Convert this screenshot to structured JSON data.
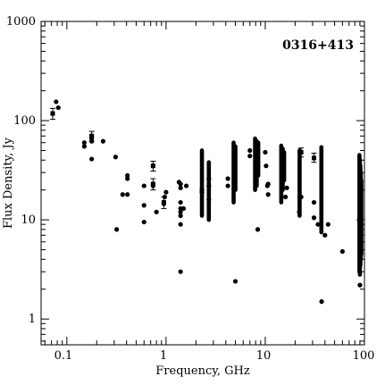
{
  "chart_data": {
    "type": "scatter",
    "title": "0316+413",
    "xlabel": "Frequency, GHz",
    "ylabel": "Flux Density, Jy",
    "x_scale": "log",
    "y_scale": "log",
    "xlim": [
      0.055,
      100
    ],
    "ylim": [
      0.55,
      1000
    ],
    "x_tick_labels": [
      "0.1",
      "1",
      "10",
      "100"
    ],
    "y_tick_labels": [
      "1",
      "10",
      "100",
      "1000"
    ],
    "x_ticks": [
      0.1,
      1,
      10,
      100
    ],
    "y_ticks": [
      1,
      10,
      100,
      1000
    ],
    "grid": false,
    "points": [
      {
        "x": 0.072,
        "y": 118
      },
      {
        "x": 0.078,
        "y": 155
      },
      {
        "x": 0.082,
        "y": 135
      },
      {
        "x": 0.15,
        "y": 60
      },
      {
        "x": 0.15,
        "y": 55
      },
      {
        "x": 0.178,
        "y": 70
      },
      {
        "x": 0.178,
        "y": 66
      },
      {
        "x": 0.178,
        "y": 62
      },
      {
        "x": 0.178,
        "y": 41
      },
      {
        "x": 0.232,
        "y": 62
      },
      {
        "x": 0.31,
        "y": 43
      },
      {
        "x": 0.318,
        "y": 8
      },
      {
        "x": 0.365,
        "y": 18
      },
      {
        "x": 0.408,
        "y": 26
      },
      {
        "x": 0.408,
        "y": 28
      },
      {
        "x": 0.408,
        "y": 18
      },
      {
        "x": 0.6,
        "y": 22
      },
      {
        "x": 0.6,
        "y": 14
      },
      {
        "x": 0.6,
        "y": 9.5
      },
      {
        "x": 0.74,
        "y": 35
      },
      {
        "x": 0.74,
        "y": 22
      },
      {
        "x": 0.74,
        "y": 23
      },
      {
        "x": 0.8,
        "y": 12
      },
      {
        "x": 0.95,
        "y": 15
      },
      {
        "x": 0.95,
        "y": 14.5
      },
      {
        "x": 0.97,
        "y": 17
      },
      {
        "x": 1.0,
        "y": 19
      },
      {
        "x": 1.35,
        "y": 24
      },
      {
        "x": 1.4,
        "y": 23
      },
      {
        "x": 1.4,
        "y": 21
      },
      {
        "x": 1.4,
        "y": 15
      },
      {
        "x": 1.4,
        "y": 13
      },
      {
        "x": 1.4,
        "y": 12
      },
      {
        "x": 1.4,
        "y": 11
      },
      {
        "x": 1.4,
        "y": 9
      },
      {
        "x": 1.4,
        "y": 3
      },
      {
        "x": 1.5,
        "y": 13
      },
      {
        "x": 1.6,
        "y": 22
      },
      {
        "x": 2.3,
        "y": 20
      },
      {
        "x": 2.3,
        "y": 19
      },
      {
        "x": 2.7,
        "y": 26
      },
      {
        "x": 2.7,
        "y": 22
      },
      {
        "x": 2.7,
        "y": 16
      },
      {
        "x": 4.2,
        "y": 26
      },
      {
        "x": 4.2,
        "y": 22
      },
      {
        "x": 5.0,
        "y": 2.4
      },
      {
        "x": 7.0,
        "y": 50
      },
      {
        "x": 7.0,
        "y": 44
      },
      {
        "x": 8.4,
        "y": 8
      },
      {
        "x": 10.0,
        "y": 48
      },
      {
        "x": 10.2,
        "y": 35
      },
      {
        "x": 10.5,
        "y": 22
      },
      {
        "x": 10.7,
        "y": 18
      },
      {
        "x": 10.7,
        "y": 23
      },
      {
        "x": 16.0,
        "y": 17
      },
      {
        "x": 16.5,
        "y": 21
      },
      {
        "x": 22.0,
        "y": 12
      },
      {
        "x": 23.0,
        "y": 17
      },
      {
        "x": 31.0,
        "y": 15
      },
      {
        "x": 31.0,
        "y": 10.5
      },
      {
        "x": 34.0,
        "y": 9
      },
      {
        "x": 37.0,
        "y": 1.5
      },
      {
        "x": 40.0,
        "y": 7
      },
      {
        "x": 43.0,
        "y": 9
      },
      {
        "x": 60.0,
        "y": 4.8
      },
      {
        "x": 90.0,
        "y": 2.2
      }
    ],
    "vertical_runs": [
      {
        "x": 2.3,
        "y_min": 11,
        "y_max": 50
      },
      {
        "x": 2.7,
        "y_min": 10,
        "y_max": 38
      },
      {
        "x": 4.8,
        "y_min": 15,
        "y_max": 60
      },
      {
        "x": 5.0,
        "y_min": 20,
        "y_max": 55
      },
      {
        "x": 7.9,
        "y_min": 20,
        "y_max": 66
      },
      {
        "x": 8.2,
        "y_min": 22,
        "y_max": 62
      },
      {
        "x": 8.5,
        "y_min": 28,
        "y_max": 60
      },
      {
        "x": 14.5,
        "y_min": 15,
        "y_max": 56
      },
      {
        "x": 15.0,
        "y_min": 20,
        "y_max": 52
      },
      {
        "x": 15.5,
        "y_min": 25,
        "y_max": 48
      },
      {
        "x": 22.2,
        "y_min": 11,
        "y_max": 50
      },
      {
        "x": 36.8,
        "y_min": 7.5,
        "y_max": 54
      },
      {
        "x": 89.0,
        "y_min": 3,
        "y_max": 45
      },
      {
        "x": 90.0,
        "y_min": 2.8,
        "y_max": 40
      },
      {
        "x": 91.0,
        "y_min": 3.5,
        "y_max": 35
      },
      {
        "x": 92.0,
        "y_min": 4,
        "y_max": 30
      },
      {
        "x": 93.0,
        "y_min": 4.5,
        "y_max": 25
      }
    ],
    "error_bars": [
      {
        "x": 0.072,
        "y": 118,
        "y_low": 103,
        "y_high": 133
      },
      {
        "x": 0.178,
        "y": 70,
        "y_low": 62,
        "y_high": 78
      },
      {
        "x": 0.74,
        "y": 35,
        "y_low": 31,
        "y_high": 39
      },
      {
        "x": 0.74,
        "y": 23,
        "y_low": 20,
        "y_high": 26
      },
      {
        "x": 0.95,
        "y": 15,
        "y_low": 13,
        "y_high": 17
      },
      {
        "x": 23.0,
        "y": 48,
        "y_low": 43,
        "y_high": 53
      },
      {
        "x": 31.0,
        "y": 42,
        "y_low": 38,
        "y_high": 47
      }
    ]
  }
}
